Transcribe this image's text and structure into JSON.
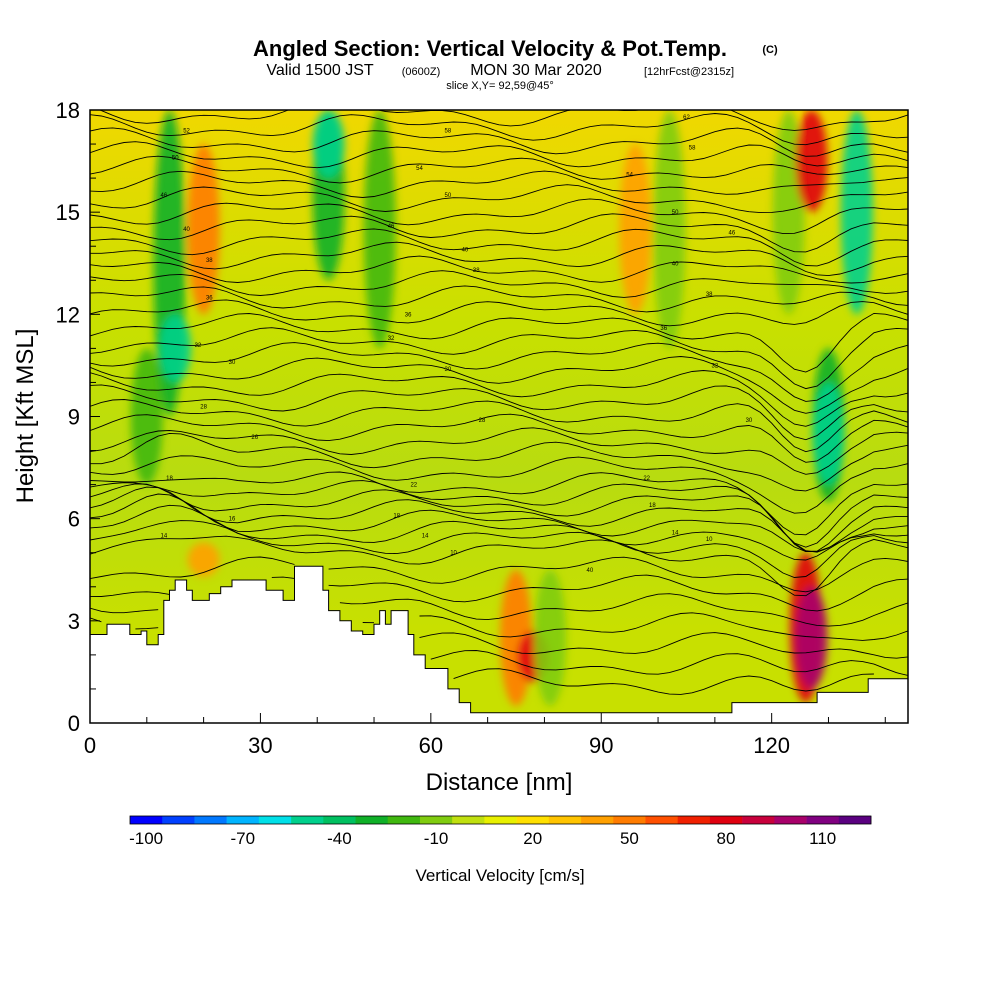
{
  "title": {
    "main": "Angled Section: Vertical Velocity & Pot.Temp.",
    "copyright": "(C)",
    "valid_prefix": "Valid 1500 JST",
    "utc": "(0600Z)",
    "valid_date": "MON 30 Mar 2020",
    "fcst": "[12hrFcst@2315z]",
    "slice": "slice X,Y= 92,59@45°"
  },
  "chart_data": {
    "type": "heatmap",
    "xlabel": "Distance [nm]",
    "ylabel": "Height [Kft MSL]",
    "xlim": [
      0,
      144
    ],
    "ylim": [
      0,
      18
    ],
    "x_ticks": [
      0,
      30,
      60,
      90,
      120
    ],
    "y_ticks": [
      0,
      3,
      6,
      9,
      12,
      15,
      18
    ],
    "terrain_kft": [
      [
        0,
        2.6
      ],
      [
        3,
        2.6
      ],
      [
        3,
        2.9
      ],
      [
        7,
        2.9
      ],
      [
        7,
        2.6
      ],
      [
        9,
        2.6
      ],
      [
        9,
        2.7
      ],
      [
        10,
        2.7
      ],
      [
        10,
        2.3
      ],
      [
        12,
        2.3
      ],
      [
        12,
        2.6
      ],
      [
        13,
        2.6
      ],
      [
        13,
        3.6
      ],
      [
        14,
        3.6
      ],
      [
        14,
        3.9
      ],
      [
        15,
        3.9
      ],
      [
        15,
        4.2
      ],
      [
        17,
        4.2
      ],
      [
        17,
        3.9
      ],
      [
        18,
        3.9
      ],
      [
        18,
        3.6
      ],
      [
        21,
        3.6
      ],
      [
        21,
        3.8
      ],
      [
        23,
        3.8
      ],
      [
        23,
        4.0
      ],
      [
        25,
        4.0
      ],
      [
        25,
        4.2
      ],
      [
        31,
        4.2
      ],
      [
        31,
        3.9
      ],
      [
        34,
        3.9
      ],
      [
        34,
        3.6
      ],
      [
        36,
        3.6
      ],
      [
        36,
        4.6
      ],
      [
        41,
        4.6
      ],
      [
        41,
        3.9
      ],
      [
        42,
        3.9
      ],
      [
        42,
        3.3
      ],
      [
        44,
        3.3
      ],
      [
        44,
        3.0
      ],
      [
        46,
        3.0
      ],
      [
        46,
        2.7
      ],
      [
        48,
        2.7
      ],
      [
        48,
        2.6
      ],
      [
        50,
        2.6
      ],
      [
        50,
        2.9
      ],
      [
        51,
        2.9
      ],
      [
        51,
        3.3
      ],
      [
        52,
        3.3
      ],
      [
        52,
        2.9
      ],
      [
        53,
        2.9
      ],
      [
        53,
        3.3
      ],
      [
        56,
        3.3
      ],
      [
        56,
        2.6
      ],
      [
        57,
        2.6
      ],
      [
        57,
        2.0
      ],
      [
        59,
        2.0
      ],
      [
        59,
        1.6
      ],
      [
        63,
        1.6
      ],
      [
        63,
        1.0
      ],
      [
        65,
        1.0
      ],
      [
        65,
        0.6
      ],
      [
        67,
        0.6
      ],
      [
        67,
        0.3
      ],
      [
        113,
        0.3
      ],
      [
        113,
        0.6
      ],
      [
        128,
        0.6
      ],
      [
        128,
        0.9
      ],
      [
        137,
        0.9
      ],
      [
        137,
        1.3
      ],
      [
        144,
        1.3
      ]
    ],
    "vertical_velocity_cm_s": [
      {
        "x": 10,
        "y_range": [
          7,
          11
        ],
        "value": -30
      },
      {
        "x": 14,
        "y_range": [
          9,
          18
        ],
        "value": -40
      },
      {
        "x": 15,
        "y_range": [
          10,
          12
        ],
        "value": -60
      },
      {
        "x": 20,
        "y_range": [
          12,
          17
        ],
        "value": 40
      },
      {
        "x": 20,
        "y_range": [
          4.3,
          5.3
        ],
        "value": 30
      },
      {
        "x": 42,
        "y_range": [
          13,
          18
        ],
        "value": -40
      },
      {
        "x": 42,
        "y_range": [
          16,
          18
        ],
        "value": -60
      },
      {
        "x": 51,
        "y_range": [
          11,
          18
        ],
        "value": -30
      },
      {
        "x": 75,
        "y_range": [
          0.5,
          4.5
        ],
        "value": 40
      },
      {
        "x": 78,
        "y_range": [
          1.2,
          2.7
        ],
        "value": 70
      },
      {
        "x": 81,
        "y_range": [
          0.5,
          4.5
        ],
        "value": -20
      },
      {
        "x": 96,
        "y_range": [
          12,
          17
        ],
        "value": 30
      },
      {
        "x": 102,
        "y_range": [
          11,
          18
        ],
        "value": -20
      },
      {
        "x": 123,
        "y_range": [
          12,
          18
        ],
        "value": -20
      },
      {
        "x": 126,
        "y_range": [
          0.6,
          5
        ],
        "value": 70
      },
      {
        "x": 127,
        "y_range": [
          1,
          4
        ],
        "value": 90
      },
      {
        "x": 130,
        "y_range": [
          6.5,
          11
        ],
        "value": -40
      },
      {
        "x": 130,
        "y_range": [
          7,
          10
        ],
        "value": -60
      },
      {
        "x": 127,
        "y_range": [
          15,
          18
        ],
        "value": 70
      },
      {
        "x": 135,
        "y_range": [
          12,
          18
        ],
        "value": -60
      }
    ],
    "contour_labels": [
      {
        "x": 17,
        "y": 17.4,
        "text": "52"
      },
      {
        "x": 15,
        "y": 16.6,
        "text": "50"
      },
      {
        "x": 13,
        "y": 15.5,
        "text": "46"
      },
      {
        "x": 17,
        "y": 14.5,
        "text": "40"
      },
      {
        "x": 21,
        "y": 13.6,
        "text": "38"
      },
      {
        "x": 21,
        "y": 12.5,
        "text": "36"
      },
      {
        "x": 19,
        "y": 11.1,
        "text": "32"
      },
      {
        "x": 25,
        "y": 10.6,
        "text": "30"
      },
      {
        "x": 20,
        "y": 9.3,
        "text": "28"
      },
      {
        "x": 29,
        "y": 8.4,
        "text": "26"
      },
      {
        "x": 14,
        "y": 7.2,
        "text": "18"
      },
      {
        "x": 25,
        "y": 6.0,
        "text": "16"
      },
      {
        "x": 13,
        "y": 5.5,
        "text": "14"
      },
      {
        "x": 63,
        "y": 17.4,
        "text": "58"
      },
      {
        "x": 58,
        "y": 16.3,
        "text": "54"
      },
      {
        "x": 63,
        "y": 15.5,
        "text": "50"
      },
      {
        "x": 53,
        "y": 14.6,
        "text": "46"
      },
      {
        "x": 66,
        "y": 13.9,
        "text": "40"
      },
      {
        "x": 68,
        "y": 13.3,
        "text": "38"
      },
      {
        "x": 56,
        "y": 12.0,
        "text": "36"
      },
      {
        "x": 53,
        "y": 11.3,
        "text": "32"
      },
      {
        "x": 63,
        "y": 10.4,
        "text": "30"
      },
      {
        "x": 69,
        "y": 8.9,
        "text": "28"
      },
      {
        "x": 57,
        "y": 7.0,
        "text": "22"
      },
      {
        "x": 54,
        "y": 6.1,
        "text": "18"
      },
      {
        "x": 59,
        "y": 5.5,
        "text": "14"
      },
      {
        "x": 64,
        "y": 5.0,
        "text": "10"
      },
      {
        "x": 88,
        "y": 4.5,
        "text": "40"
      },
      {
        "x": 105,
        "y": 17.8,
        "text": "62"
      },
      {
        "x": 106,
        "y": 16.9,
        "text": "58"
      },
      {
        "x": 95,
        "y": 16.1,
        "text": "54"
      },
      {
        "x": 103,
        "y": 15.0,
        "text": "50"
      },
      {
        "x": 113,
        "y": 14.4,
        "text": "46"
      },
      {
        "x": 103,
        "y": 13.5,
        "text": "40"
      },
      {
        "x": 109,
        "y": 12.6,
        "text": "38"
      },
      {
        "x": 101,
        "y": 11.6,
        "text": "36"
      },
      {
        "x": 110,
        "y": 10.5,
        "text": "32"
      },
      {
        "x": 116,
        "y": 8.9,
        "text": "30"
      },
      {
        "x": 98,
        "y": 7.2,
        "text": "22"
      },
      {
        "x": 99,
        "y": 6.4,
        "text": "18"
      },
      {
        "x": 103,
        "y": 5.6,
        "text": "14"
      },
      {
        "x": 109,
        "y": 5.4,
        "text": "10"
      }
    ]
  },
  "colorbar": {
    "label": "Vertical Velocity [cm/s]",
    "tick_labels": [
      "-100",
      "-70",
      "-40",
      "-10",
      "20",
      "50",
      "80",
      "110"
    ],
    "colors": [
      "#0000ff",
      "#0040ff",
      "#0078ff",
      "#00b4ff",
      "#00e0e8",
      "#00d08c",
      "#00c060",
      "#10b028",
      "#40b810",
      "#80cc10",
      "#c0e010",
      "#e8f000",
      "#ffe000",
      "#ffc400",
      "#ffa000",
      "#ff7c00",
      "#ff5000",
      "#f02000",
      "#e00010",
      "#c8003c",
      "#a8006a",
      "#800080",
      "#5a0080"
    ]
  }
}
